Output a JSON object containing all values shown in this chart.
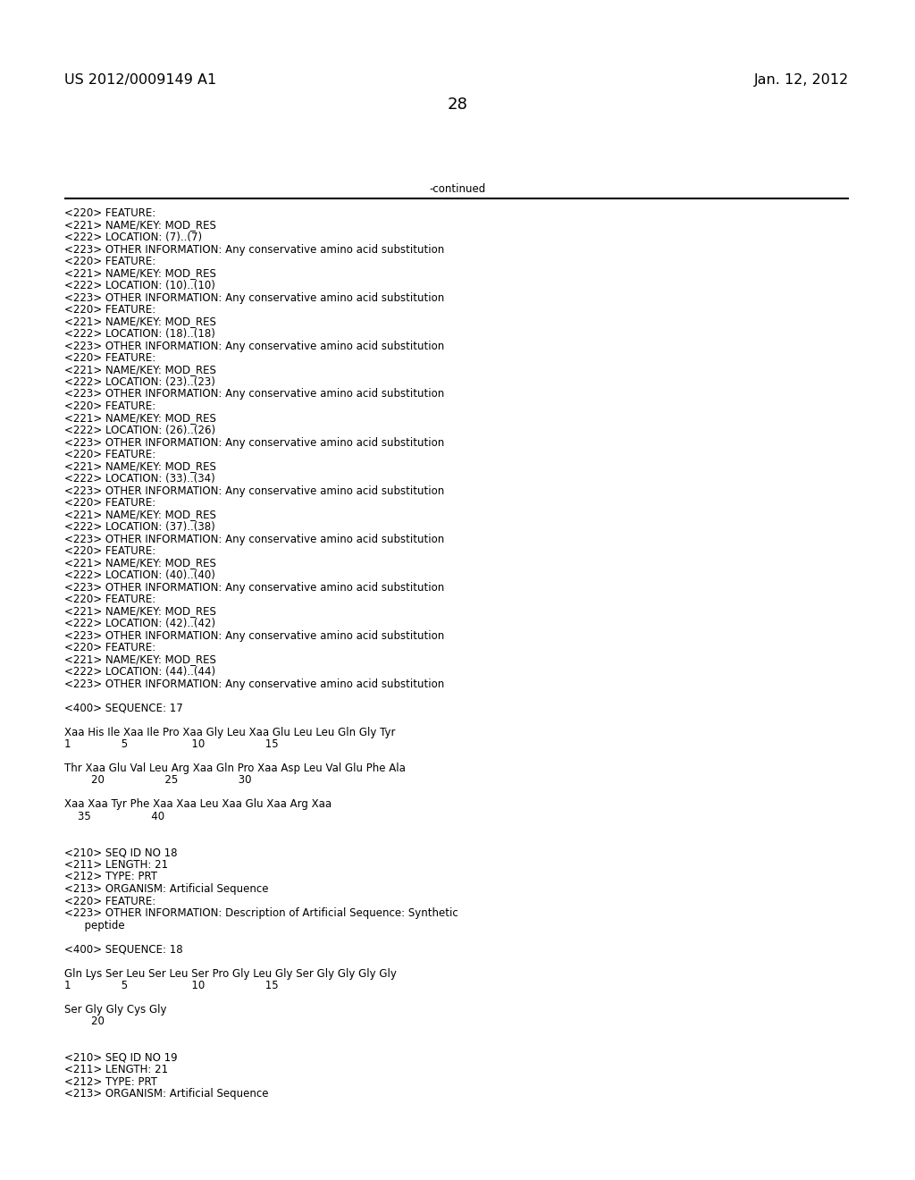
{
  "header_left": "US 2012/0009149 A1",
  "header_right": "Jan. 12, 2012",
  "page_number": "28",
  "continued_label": "-continued",
  "background_color": "#ffffff",
  "text_color": "#000000",
  "font_size_header": 11.5,
  "font_size_body": 8.5,
  "font_size_page": 13,
  "lines": [
    "<220> FEATURE:",
    "<221> NAME/KEY: MOD_RES",
    "<222> LOCATION: (7)..(7)",
    "<223> OTHER INFORMATION: Any conservative amino acid substitution",
    "<220> FEATURE:",
    "<221> NAME/KEY: MOD_RES",
    "<222> LOCATION: (10)..(10)",
    "<223> OTHER INFORMATION: Any conservative amino acid substitution",
    "<220> FEATURE:",
    "<221> NAME/KEY: MOD_RES",
    "<222> LOCATION: (18)..(18)",
    "<223> OTHER INFORMATION: Any conservative amino acid substitution",
    "<220> FEATURE:",
    "<221> NAME/KEY: MOD_RES",
    "<222> LOCATION: (23)..(23)",
    "<223> OTHER INFORMATION: Any conservative amino acid substitution",
    "<220> FEATURE:",
    "<221> NAME/KEY: MOD_RES",
    "<222> LOCATION: (26)..(26)",
    "<223> OTHER INFORMATION: Any conservative amino acid substitution",
    "<220> FEATURE:",
    "<221> NAME/KEY: MOD_RES",
    "<222> LOCATION: (33)..(34)",
    "<223> OTHER INFORMATION: Any conservative amino acid substitution",
    "<220> FEATURE:",
    "<221> NAME/KEY: MOD_RES",
    "<222> LOCATION: (37)..(38)",
    "<223> OTHER INFORMATION: Any conservative amino acid substitution",
    "<220> FEATURE:",
    "<221> NAME/KEY: MOD_RES",
    "<222> LOCATION: (40)..(40)",
    "<223> OTHER INFORMATION: Any conservative amino acid substitution",
    "<220> FEATURE:",
    "<221> NAME/KEY: MOD_RES",
    "<222> LOCATION: (42)..(42)",
    "<223> OTHER INFORMATION: Any conservative amino acid substitution",
    "<220> FEATURE:",
    "<221> NAME/KEY: MOD_RES",
    "<222> LOCATION: (44)..(44)",
    "<223> OTHER INFORMATION: Any conservative amino acid substitution",
    "",
    "<400> SEQUENCE: 17",
    "",
    "Xaa His Ile Xaa Ile Pro Xaa Gly Leu Xaa Glu Leu Leu Gln Gly Tyr",
    "1               5                   10                  15",
    "",
    "Thr Xaa Glu Val Leu Arg Xaa Gln Pro Xaa Asp Leu Val Glu Phe Ala",
    "        20                  25                  30",
    "",
    "Xaa Xaa Tyr Phe Xaa Xaa Leu Xaa Glu Xaa Arg Xaa",
    "    35                  40",
    "",
    "",
    "<210> SEQ ID NO 18",
    "<211> LENGTH: 21",
    "<212> TYPE: PRT",
    "<213> ORGANISM: Artificial Sequence",
    "<220> FEATURE:",
    "<223> OTHER INFORMATION: Description of Artificial Sequence: Synthetic",
    "      peptide",
    "",
    "<400> SEQUENCE: 18",
    "",
    "Gln Lys Ser Leu Ser Leu Ser Pro Gly Leu Gly Ser Gly Gly Gly Gly",
    "1               5                   10                  15",
    "",
    "Ser Gly Gly Cys Gly",
    "        20",
    "",
    "",
    "<210> SEQ ID NO 19",
    "<211> LENGTH: 21",
    "<212> TYPE: PRT",
    "<213> ORGANISM: Artificial Sequence"
  ]
}
